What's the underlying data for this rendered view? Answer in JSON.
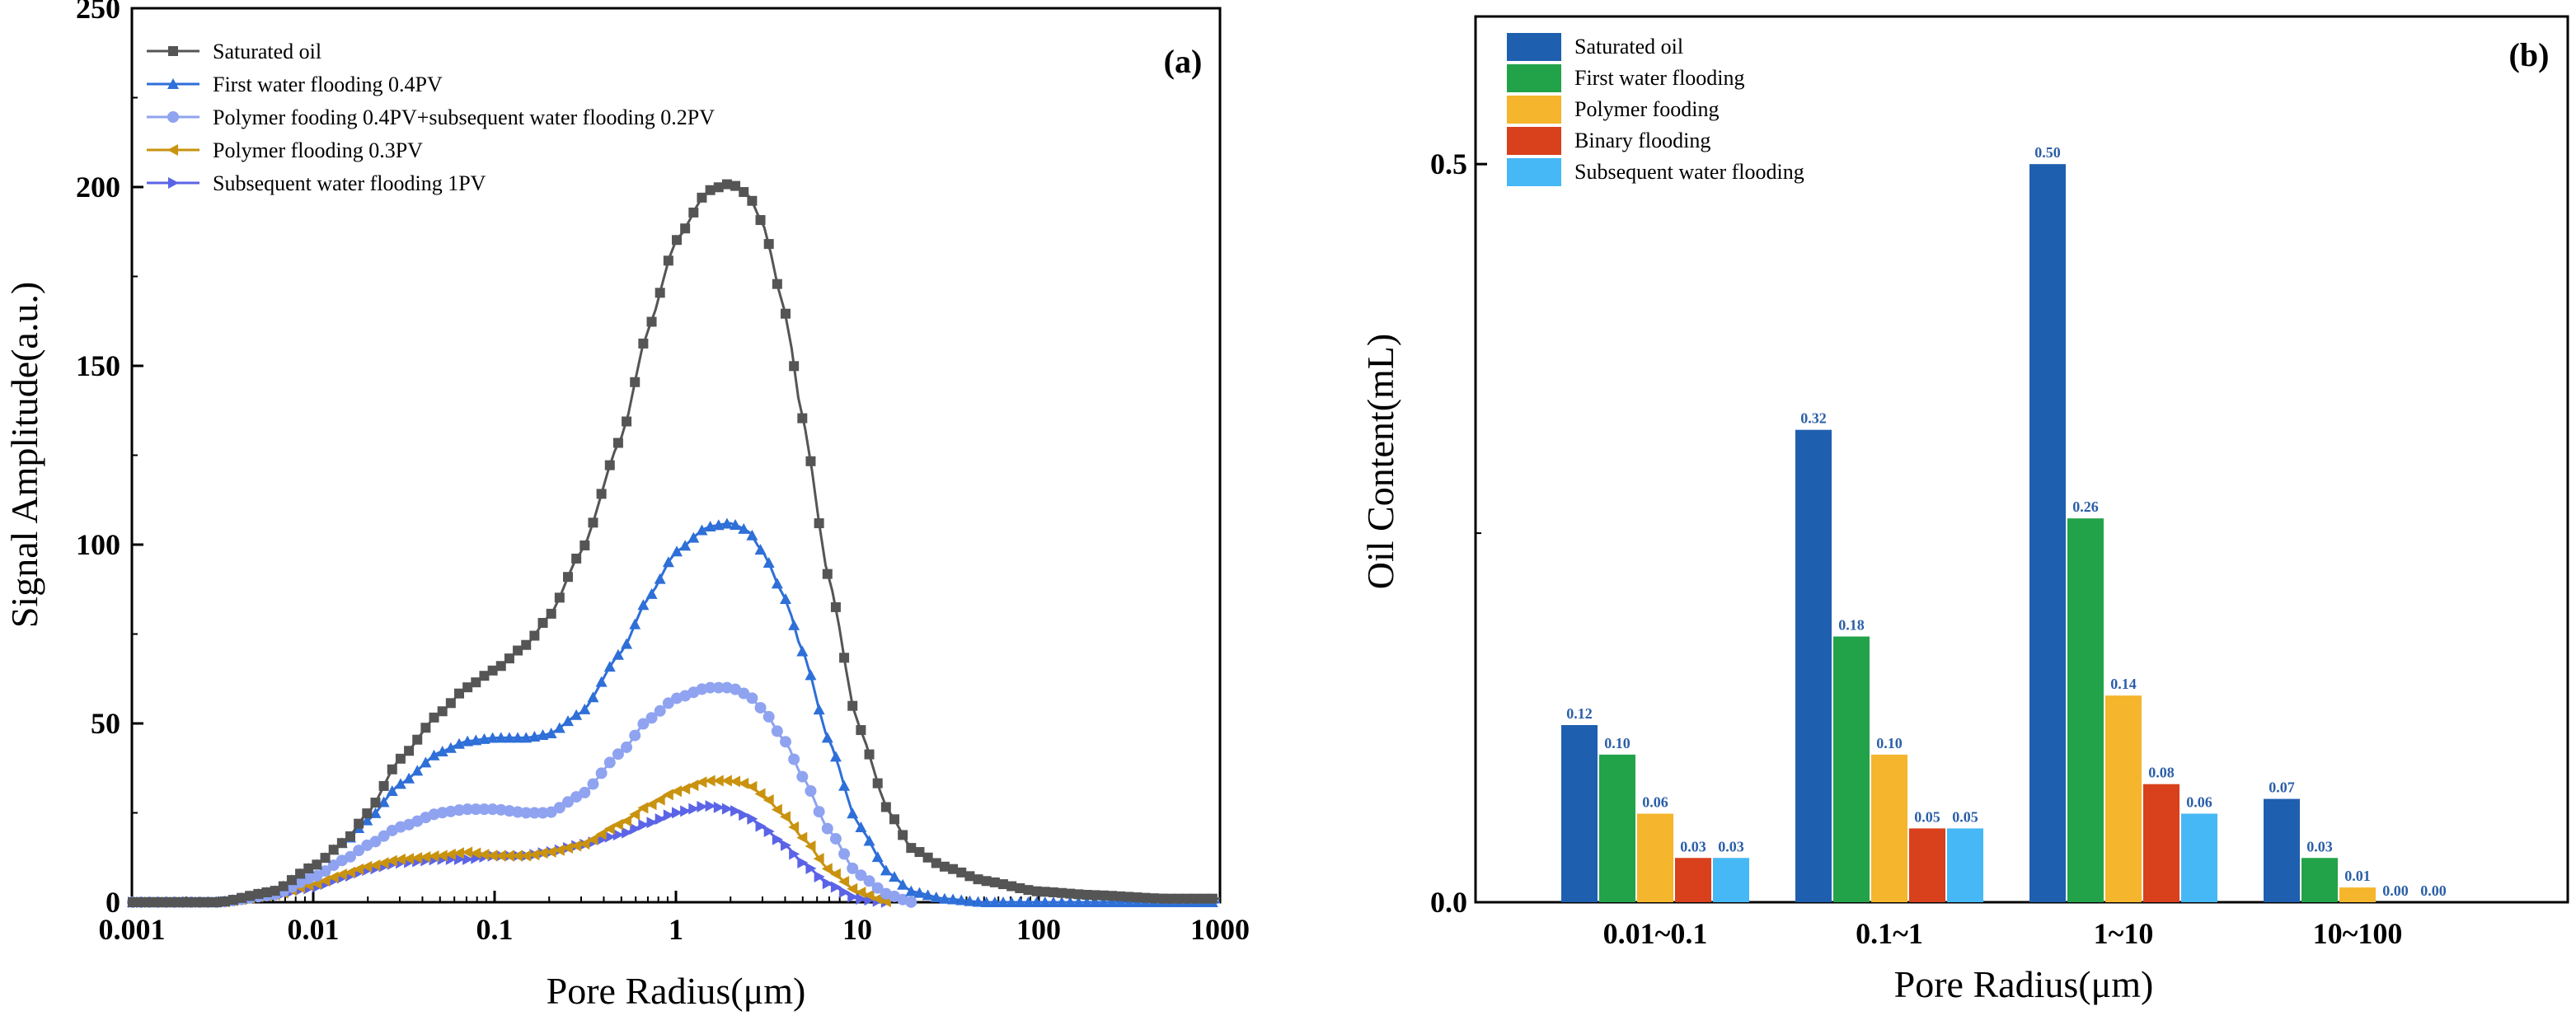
{
  "chart_data": [
    {
      "panel": "(a)",
      "type": "line",
      "xscale": "log",
      "xlim": [
        0.001,
        1000
      ],
      "ylim": [
        0,
        250
      ],
      "xlabel": "Pore Radius(μm)",
      "ylabel": "Signal Amplitude(a.u.)",
      "xticks": [
        "0.001",
        "0.01",
        "0.1",
        "1",
        "10",
        "100",
        "1000"
      ],
      "yticks": [
        "0",
        "50",
        "100",
        "150",
        "200",
        "250"
      ],
      "legend_position": "top-left",
      "series": [
        {
          "name": "Saturated oil",
          "color": "#555555",
          "marker": "square",
          "x": [
            0.001,
            0.003,
            0.006,
            0.01,
            0.015,
            0.02,
            0.03,
            0.05,
            0.07,
            0.1,
            0.15,
            0.2,
            0.3,
            0.5,
            0.7,
            1,
            1.5,
            2,
            2.5,
            3,
            4,
            5,
            7,
            10,
            15,
            20,
            30,
            50,
            100,
            200,
            500,
            1000
          ],
          "y": [
            0,
            0,
            3,
            10,
            17,
            25,
            40,
            53,
            60,
            65,
            72,
            80,
            98,
            130,
            160,
            185,
            199,
            201,
            198,
            190,
            165,
            135,
            90,
            50,
            25,
            15,
            10,
            6,
            3,
            2,
            1,
            1
          ]
        },
        {
          "name": "First water flooding 0.4PV",
          "color": "#2e6fd8",
          "marker": "triangle-up",
          "x": [
            0.001,
            0.003,
            0.006,
            0.01,
            0.015,
            0.02,
            0.03,
            0.05,
            0.07,
            0.1,
            0.15,
            0.2,
            0.3,
            0.5,
            0.7,
            1,
            1.5,
            2,
            2.5,
            3,
            4,
            5,
            7,
            10,
            15,
            20,
            30,
            50,
            100,
            200,
            500,
            1000
          ],
          "y": [
            0,
            0,
            3,
            10,
            17,
            23,
            33,
            42,
            45,
            46,
            46,
            47,
            53,
            70,
            85,
            98,
            105,
            106,
            104,
            98,
            85,
            70,
            45,
            22,
            8,
            3,
            1,
            0,
            0,
            0,
            0,
            0
          ]
        },
        {
          "name": "Polymer fooding 0.4PV+subsequent water flooding 0.2PV",
          "color": "#8fa3f0",
          "marker": "circle",
          "x": [
            0.001,
            0.003,
            0.006,
            0.01,
            0.015,
            0.02,
            0.03,
            0.05,
            0.07,
            0.1,
            0.15,
            0.2,
            0.3,
            0.5,
            0.7,
            1,
            1.5,
            2,
            2.5,
            3,
            4,
            5,
            7,
            10,
            15,
            20
          ],
          "y": [
            0,
            0,
            2,
            7,
            12,
            16,
            21,
            25,
            26,
            26,
            25,
            25,
            30,
            42,
            51,
            57,
            60,
            60,
            58,
            54,
            45,
            35,
            20,
            8,
            2,
            0
          ]
        },
        {
          "name": "Polymer flooding 0.3PV",
          "color": "#c9930f",
          "marker": "triangle-left",
          "x": [
            0.001,
            0.003,
            0.006,
            0.01,
            0.015,
            0.02,
            0.03,
            0.05,
            0.07,
            0.1,
            0.15,
            0.2,
            0.3,
            0.5,
            0.7,
            1,
            1.5,
            2,
            2.5,
            3,
            4,
            5,
            7,
            10,
            15
          ],
          "y": [
            0,
            0,
            2,
            5,
            8,
            10,
            12,
            13,
            14,
            13,
            13,
            14,
            16,
            22,
            27,
            31,
            34,
            34,
            33,
            30,
            24,
            18,
            9,
            3,
            0
          ]
        },
        {
          "name": "Subsequent water flooding 1PV",
          "color": "#5b64e6",
          "marker": "triangle-right",
          "x": [
            0.001,
            0.003,
            0.006,
            0.01,
            0.015,
            0.02,
            0.03,
            0.05,
            0.07,
            0.1,
            0.15,
            0.2,
            0.3,
            0.5,
            0.7,
            1,
            1.5,
            2,
            2.5,
            3,
            4,
            5,
            7,
            10,
            15
          ],
          "y": [
            0,
            0,
            2,
            4,
            7,
            9,
            11,
            12,
            12,
            13,
            13,
            14,
            16,
            19,
            22,
            25,
            27,
            26,
            24,
            21,
            16,
            11,
            5,
            1,
            0
          ]
        }
      ]
    },
    {
      "panel": "(b)",
      "type": "bar",
      "xlabel": "Pore Radius(μm)",
      "ylabel": "Oil Content(mL)",
      "ylim": [
        0,
        0.6
      ],
      "yticks": [
        "0.0",
        "0.5"
      ],
      "categories": [
        "0.01~0.1",
        "0.1~1",
        "1~10",
        "10~100"
      ],
      "legend_position": "top-left",
      "series": [
        {
          "name": "Saturated oil",
          "color": "#1f5fb0",
          "values": [
            0.12,
            0.32,
            0.5,
            0.07
          ],
          "labels": [
            "0.12",
            "0.32",
            "0.50",
            "0.07"
          ]
        },
        {
          "name": "First water flooding",
          "color": "#22a34a",
          "values": [
            0.1,
            0.18,
            0.26,
            0.03
          ],
          "labels": [
            "0.10",
            "0.18",
            "0.26",
            "0.03"
          ]
        },
        {
          "name": "Polymer fooding",
          "color": "#f5b52c",
          "values": [
            0.06,
            0.1,
            0.14,
            0.01
          ],
          "labels": [
            "0.06",
            "0.10",
            "0.14",
            "0.01"
          ]
        },
        {
          "name": "Binary flooding",
          "color": "#d9401c",
          "values": [
            0.03,
            0.05,
            0.08,
            0.0
          ],
          "labels": [
            "0.03",
            "0.05",
            "0.08",
            "0.00"
          ]
        },
        {
          "name": "Subsequent water flooding",
          "color": "#45b8f5",
          "values": [
            0.03,
            0.05,
            0.06,
            0.0
          ],
          "labels": [
            "0.03",
            "0.05",
            "0.06",
            "0.00"
          ]
        }
      ]
    }
  ]
}
